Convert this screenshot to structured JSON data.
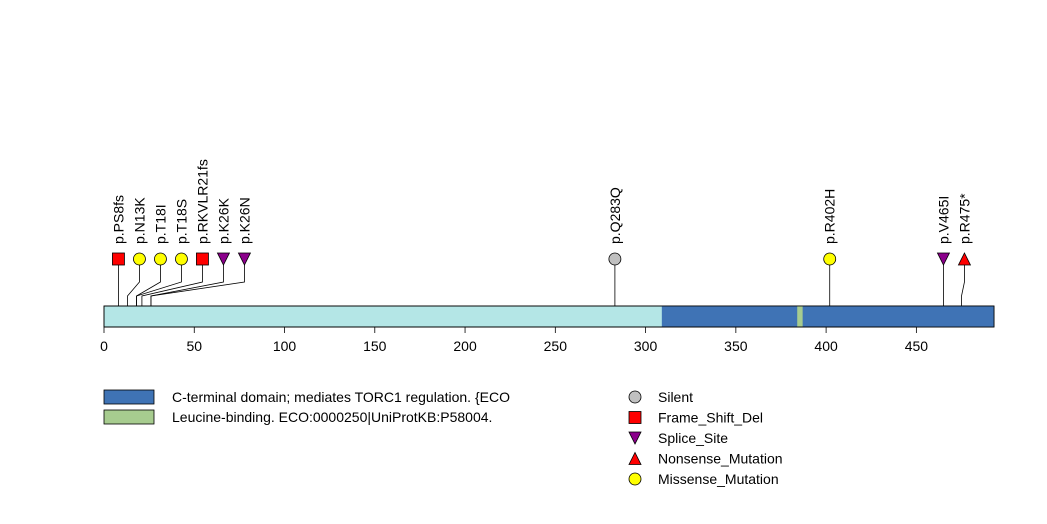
{
  "chart_data": {
    "type": "lollipop",
    "protein_length": 493,
    "x_ticks": [
      0,
      50,
      100,
      150,
      200,
      250,
      300,
      350,
      400,
      450
    ],
    "colors": {
      "backbone": "#b4e6e6",
      "domain_cterm": "#3f73b5",
      "domain_leucine": "#a7cc8f",
      "Silent": "#c0c0c0",
      "Frame_Shift_Del": "#ff0000",
      "Splice_Site": "#8b008b",
      "Nonsense_Mutation": "#ff0000",
      "Missense_Mutation": "#ffff00"
    },
    "domains": [
      {
        "name": "C-terminal domain; mediates TORC1 regulation. {ECO",
        "start": 309,
        "end": 493,
        "color_key": "domain_cterm"
      },
      {
        "name": "Leucine-binding. ECO:0000250|UniProtKB:P58004.",
        "start": 384,
        "end": 387,
        "color_key": "domain_leucine"
      }
    ],
    "mutations": [
      {
        "label": "p.PS8fs",
        "pos": 8,
        "type": "Frame_Shift_Del"
      },
      {
        "label": "p.N13K",
        "pos": 13,
        "type": "Missense_Mutation"
      },
      {
        "label": "p.T18I",
        "pos": 18,
        "type": "Missense_Mutation"
      },
      {
        "label": "p.T18S",
        "pos": 18,
        "type": "Missense_Mutation"
      },
      {
        "label": "p.RKVLR21fs",
        "pos": 21,
        "type": "Frame_Shift_Del"
      },
      {
        "label": "p.K26K",
        "pos": 26,
        "type": "Splice_Site"
      },
      {
        "label": "p.K26N",
        "pos": 26,
        "type": "Splice_Site"
      },
      {
        "label": "p.Q283Q",
        "pos": 283,
        "type": "Silent"
      },
      {
        "label": "p.R402H",
        "pos": 402,
        "type": "Missense_Mutation"
      },
      {
        "label": "p.V465I",
        "pos": 465,
        "type": "Splice_Site"
      },
      {
        "label": "p.R475*",
        "pos": 475,
        "type": "Nonsense_Mutation"
      }
    ],
    "legend_domains": [
      {
        "label": "C-terminal domain; mediates TORC1 regulation. {ECO",
        "color_key": "domain_cterm"
      },
      {
        "label": "Leucine-binding. ECO:0000250|UniProtKB:P58004.",
        "color_key": "domain_leucine"
      }
    ],
    "legend_types": [
      {
        "label": "Silent",
        "type": "Silent"
      },
      {
        "label": "Frame_Shift_Del",
        "type": "Frame_Shift_Del"
      },
      {
        "label": "Splice_Site",
        "type": "Splice_Site"
      },
      {
        "label": "Nonsense_Mutation",
        "type": "Nonsense_Mutation"
      },
      {
        "label": "Missense_Mutation",
        "type": "Missense_Mutation"
      }
    ]
  }
}
